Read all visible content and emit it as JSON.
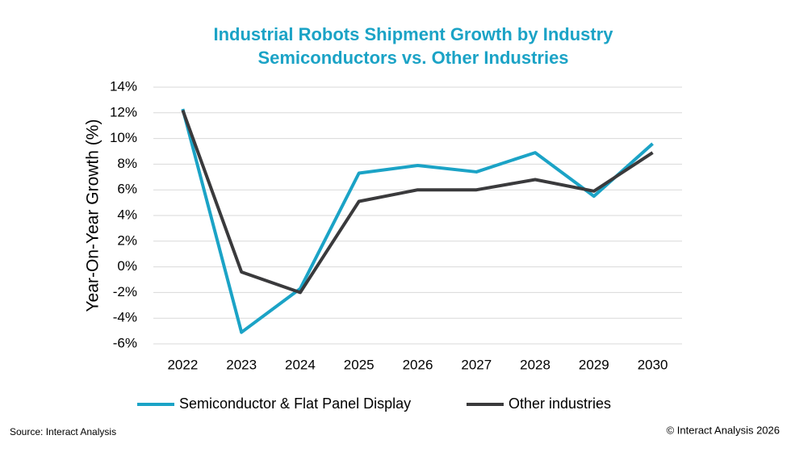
{
  "chart_data": {
    "type": "line",
    "title": "Industrial Robots Shipment Growth by Industry",
    "subtitle": "Semiconductors vs. Other Industries",
    "y_label": "Year-On-Year Growth (%)",
    "source": "Source: Interact Analysis",
    "credit": "© Interact Analysis 2026",
    "categories": [
      "2022",
      "2023",
      "2024",
      "2025",
      "2026",
      "2027",
      "2028",
      "2029",
      "2030"
    ],
    "series": [
      {
        "name": "Semiconductor & Flat Panel Display",
        "color": "#1ba3c6",
        "values": [
          12.3,
          -5.1,
          -1.7,
          7.3,
          7.9,
          7.4,
          8.9,
          5.5,
          9.6
        ]
      },
      {
        "name": "Other industries",
        "color": "#3a3a3c",
        "values": [
          12.2,
          -0.4,
          -2.0,
          5.1,
          6.0,
          6.0,
          6.8,
          5.9,
          8.9
        ]
      }
    ],
    "ylim": [
      -6,
      14
    ],
    "yticks": [
      {
        "value": -6,
        "label": "-6%"
      },
      {
        "value": -4,
        "label": "-4%"
      },
      {
        "value": -2,
        "label": "-2%"
      },
      {
        "value": 0,
        "label": "0%"
      },
      {
        "value": 2,
        "label": "2%"
      },
      {
        "value": 4,
        "label": "4%"
      },
      {
        "value": 6,
        "label": "6%"
      },
      {
        "value": 8,
        "label": "8%"
      },
      {
        "value": 10,
        "label": "10%"
      },
      {
        "value": 12,
        "label": "12%"
      },
      {
        "value": 14,
        "label": "14%"
      }
    ],
    "grid": true,
    "legend": "bottom"
  }
}
